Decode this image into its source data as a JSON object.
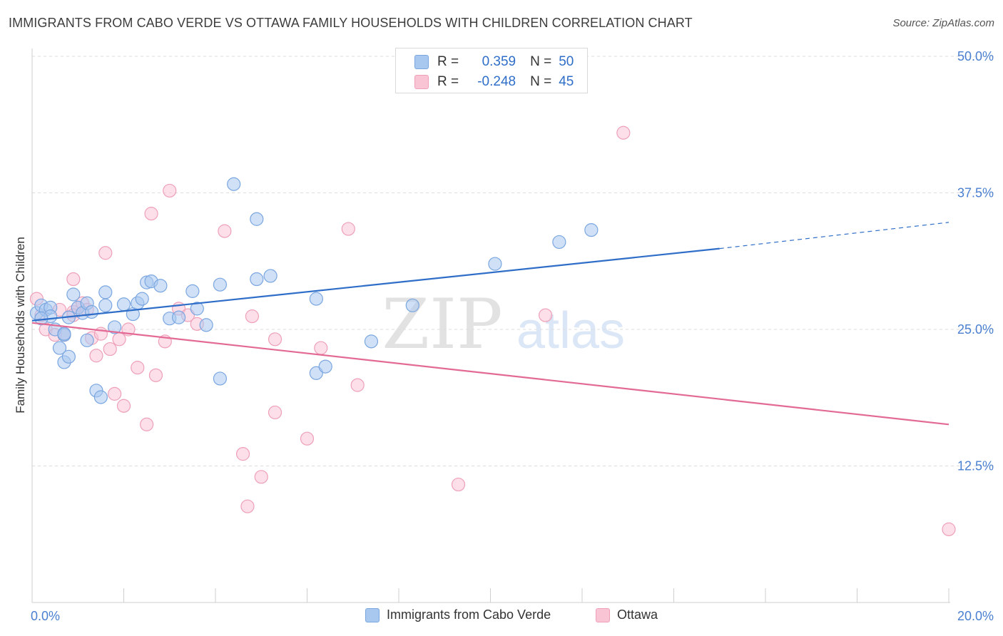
{
  "title": "IMMIGRANTS FROM CABO VERDE VS OTTAWA FAMILY HOUSEHOLDS WITH CHILDREN CORRELATION CHART",
  "source": "Source: ZipAtlas.com",
  "watermark": {
    "zip": "ZIP",
    "atlas": "atlas"
  },
  "legend": {
    "rows": [
      {
        "r_label": "R =",
        "r_value": "0.359",
        "n_label": "N =",
        "n_value": "50",
        "color": "#a9c8f0",
        "border": "#7aa6e0"
      },
      {
        "r_label": "R =",
        "r_value": "-0.248",
        "n_label": "N =",
        "n_value": "45",
        "color": "#f9c5d5",
        "border": "#eea0b8"
      }
    ]
  },
  "bottom_legend": [
    {
      "label": "Immigrants from Cabo Verde",
      "color": "#a9c8f0",
      "border": "#7aa6e0"
    },
    {
      "label": "Ottawa",
      "color": "#f9c5d5",
      "border": "#eea0b8"
    }
  ],
  "chart_data": {
    "type": "scatter",
    "title": "IMMIGRANTS FROM CABO VERDE VS OTTAWA FAMILY HOUSEHOLDS WITH CHILDREN CORRELATION CHART",
    "xlabel": "",
    "ylabel": "Family Households with Children",
    "xlim": [
      0,
      20
    ],
    "ylim": [
      0,
      50
    ],
    "x_tick_labels": [
      {
        "value": 0,
        "label": "0.0%"
      },
      {
        "value": 20,
        "label": "20.0%"
      }
    ],
    "y_tick_labels": [
      {
        "value": 12.5,
        "label": "12.5%"
      },
      {
        "value": 25,
        "label": "25.0%"
      },
      {
        "value": 37.5,
        "label": "37.5%"
      },
      {
        "value": 50,
        "label": "50.0%"
      }
    ],
    "grid": "horizontal dashed",
    "legend_placement": "top-center",
    "series": [
      {
        "name": "Immigrants from Cabo Verde",
        "color": "#7aa6e0",
        "fill": "#a9c8f0",
        "trend": {
          "x": [
            0,
            15
          ],
          "y": [
            25.8,
            32.4
          ],
          "dashed_to": [
            20,
            34.8
          ],
          "color": "#2f6ec8"
        },
        "points": [
          [
            0.1,
            26.5
          ],
          [
            0.2,
            27.2
          ],
          [
            0.3,
            26.8
          ],
          [
            0.4,
            27.0
          ],
          [
            0.4,
            26.2
          ],
          [
            0.5,
            25.0
          ],
          [
            0.6,
            23.3
          ],
          [
            0.7,
            24.5
          ],
          [
            0.7,
            22.0
          ],
          [
            0.8,
            22.5
          ],
          [
            0.8,
            26.1
          ],
          [
            0.9,
            28.2
          ],
          [
            1.0,
            27.0
          ],
          [
            1.1,
            26.5
          ],
          [
            1.2,
            24.0
          ],
          [
            1.2,
            27.4
          ],
          [
            1.3,
            26.6
          ],
          [
            1.4,
            19.4
          ],
          [
            1.5,
            18.8
          ],
          [
            1.6,
            27.2
          ],
          [
            1.6,
            28.4
          ],
          [
            1.8,
            25.2
          ],
          [
            2.0,
            27.3
          ],
          [
            2.2,
            26.4
          ],
          [
            2.3,
            27.4
          ],
          [
            2.4,
            27.8
          ],
          [
            2.5,
            29.3
          ],
          [
            2.6,
            29.4
          ],
          [
            2.8,
            29.0
          ],
          [
            3.0,
            26.0
          ],
          [
            3.2,
            26.1
          ],
          [
            3.5,
            28.5
          ],
          [
            3.6,
            26.9
          ],
          [
            3.8,
            25.4
          ],
          [
            4.1,
            29.1
          ],
          [
            4.1,
            20.5
          ],
          [
            4.4,
            38.3
          ],
          [
            4.9,
            29.6
          ],
          [
            4.9,
            35.1
          ],
          [
            5.2,
            29.9
          ],
          [
            6.2,
            21.0
          ],
          [
            6.2,
            27.8
          ],
          [
            6.4,
            21.6
          ],
          [
            7.4,
            23.9
          ],
          [
            8.3,
            27.2
          ],
          [
            10.1,
            31.0
          ],
          [
            11.5,
            33.0
          ],
          [
            12.2,
            34.1
          ],
          [
            0.7,
            24.6
          ],
          [
            0.2,
            26.0
          ]
        ]
      },
      {
        "name": "Ottawa",
        "color": "#eea0b8",
        "fill": "#f9c5d5",
        "trend": {
          "x": [
            0,
            20
          ],
          "y": [
            25.6,
            16.3
          ],
          "color": "#e26a94"
        },
        "points": [
          [
            0.1,
            27.8
          ],
          [
            0.2,
            26.3
          ],
          [
            0.3,
            25.0
          ],
          [
            0.5,
            24.5
          ],
          [
            0.6,
            26.8
          ],
          [
            0.7,
            24.5
          ],
          [
            0.9,
            26.6
          ],
          [
            0.9,
            29.6
          ],
          [
            1.0,
            27.0
          ],
          [
            1.1,
            27.4
          ],
          [
            1.2,
            26.8
          ],
          [
            1.3,
            24.2
          ],
          [
            1.4,
            22.6
          ],
          [
            1.5,
            24.6
          ],
          [
            1.6,
            32.0
          ],
          [
            1.7,
            23.2
          ],
          [
            1.8,
            19.1
          ],
          [
            1.9,
            24.1
          ],
          [
            2.0,
            18.0
          ],
          [
            2.1,
            25.0
          ],
          [
            2.3,
            21.5
          ],
          [
            2.5,
            16.3
          ],
          [
            2.6,
            35.6
          ],
          [
            2.7,
            20.8
          ],
          [
            2.9,
            23.9
          ],
          [
            3.0,
            37.7
          ],
          [
            3.2,
            26.9
          ],
          [
            3.4,
            26.3
          ],
          [
            3.6,
            25.5
          ],
          [
            4.2,
            34.0
          ],
          [
            4.6,
            13.6
          ],
          [
            4.7,
            8.8
          ],
          [
            4.8,
            26.2
          ],
          [
            5.0,
            11.5
          ],
          [
            5.3,
            17.4
          ],
          [
            5.3,
            24.1
          ],
          [
            6.0,
            15.0
          ],
          [
            6.3,
            23.3
          ],
          [
            6.9,
            34.2
          ],
          [
            7.1,
            19.9
          ],
          [
            9.3,
            10.8
          ],
          [
            11.2,
            26.3
          ],
          [
            12.9,
            43.0
          ],
          [
            20.0,
            6.7
          ],
          [
            0.9,
            26.3
          ]
        ]
      }
    ]
  }
}
